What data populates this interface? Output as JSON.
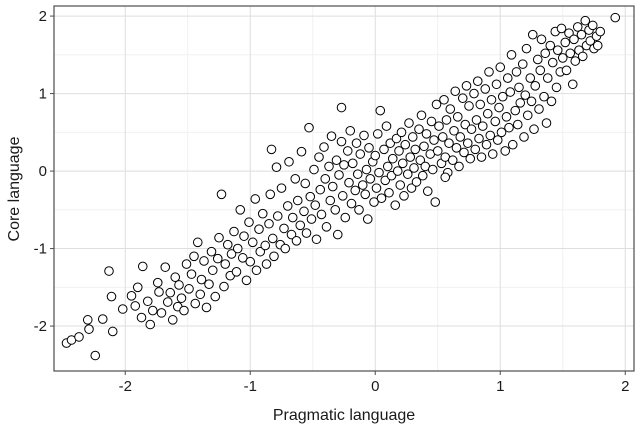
{
  "chart_data": {
    "type": "scatter",
    "title": "",
    "xlabel": "Pragmatic language",
    "ylabel": "Core language",
    "xlim": [
      -2.57,
      2.07
    ],
    "ylim": [
      -2.58,
      2.13
    ],
    "x_ticks": [
      -2,
      -1,
      0,
      1,
      2
    ],
    "y_ticks": [
      -2,
      -1,
      0,
      1,
      2
    ],
    "x_tick_labels": [
      "-2",
      "-1",
      "0",
      "1",
      "2"
    ],
    "y_tick_labels": [
      "-2",
      "-1",
      "0",
      "1",
      "2"
    ],
    "grid": true,
    "legend": "none",
    "colors": {
      "background": "#ffffff",
      "grid_major": "#dedede",
      "grid_minor": "#efefef",
      "frame": "#4d4d4d",
      "marker_fill": "#ffffff",
      "marker_stroke": "#000000",
      "text": "#1a1a1a"
    },
    "series": [
      {
        "points": [
          [
            -2.47,
            -2.22
          ],
          [
            -2.43,
            -2.18
          ],
          [
            -2.37,
            -2.14
          ],
          [
            -2.29,
            -2.04
          ],
          [
            -2.24,
            -2.38
          ],
          [
            -2.3,
            -1.92
          ],
          [
            -2.18,
            -1.91
          ],
          [
            -2.13,
            -1.29
          ],
          [
            -2.11,
            -1.62
          ],
          [
            -2.1,
            -2.07
          ],
          [
            -2.02,
            -1.78
          ],
          [
            -1.95,
            -1.61
          ],
          [
            -1.92,
            -1.74
          ],
          [
            -1.9,
            -1.5
          ],
          [
            -1.87,
            -1.89
          ],
          [
            -1.86,
            -1.23
          ],
          [
            -1.82,
            -1.68
          ],
          [
            -1.8,
            -1.98
          ],
          [
            -1.78,
            -1.8
          ],
          [
            -1.74,
            -1.44
          ],
          [
            -1.73,
            -1.56
          ],
          [
            -1.71,
            -1.83
          ],
          [
            -1.68,
            -1.24
          ],
          [
            -1.66,
            -1.69
          ],
          [
            -1.64,
            -1.57
          ],
          [
            -1.62,
            -1.92
          ],
          [
            -1.6,
            -1.37
          ],
          [
            -1.58,
            -1.75
          ],
          [
            -1.57,
            -1.47
          ],
          [
            -1.55,
            -1.64
          ],
          [
            -1.53,
            -1.8
          ],
          [
            -1.51,
            -1.2
          ],
          [
            -1.49,
            -1.52
          ],
          [
            -1.47,
            -1.33
          ],
          [
            -1.45,
            -1.1
          ],
          [
            -1.44,
            -1.71
          ],
          [
            -1.42,
            -0.92
          ],
          [
            -1.4,
            -1.59
          ],
          [
            -1.39,
            -1.4
          ],
          [
            -1.37,
            -1.16
          ],
          [
            -1.35,
            -1.76
          ],
          [
            -1.33,
            -1.46
          ],
          [
            -1.31,
            -1.04
          ],
          [
            -1.3,
            -1.28
          ],
          [
            -1.28,
            -1.62
          ],
          [
            -1.26,
            -1.13
          ],
          [
            -1.25,
            -0.86
          ],
          [
            -1.23,
            -0.3
          ],
          [
            -1.21,
            -1.49
          ],
          [
            -1.2,
            -1.2
          ],
          [
            -1.18,
            -0.95
          ],
          [
            -1.16,
            -1.35
          ],
          [
            -1.15,
            -1.07
          ],
          [
            -1.13,
            -0.78
          ],
          [
            -1.11,
            -1.3
          ],
          [
            -1.1,
            -1.0
          ],
          [
            -1.08,
            -0.5
          ],
          [
            -1.06,
            -1.12
          ],
          [
            -1.05,
            -0.84
          ],
          [
            -1.03,
            -1.41
          ],
          [
            -1.01,
            -0.66
          ],
          [
            -1.0,
            -1.17
          ],
          [
            -0.98,
            -0.92
          ],
          [
            -0.96,
            -0.36
          ],
          [
            -0.95,
            -1.28
          ],
          [
            -0.93,
            -0.75
          ],
          [
            -0.92,
            -1.04
          ],
          [
            -0.9,
            -0.55
          ],
          [
            -0.88,
            -0.96
          ],
          [
            -0.87,
            -1.2
          ],
          [
            -0.85,
            -0.68
          ],
          [
            -0.84,
            -0.3
          ],
          [
            -0.82,
            -0.87
          ],
          [
            -0.81,
            -1.1
          ],
          [
            -0.79,
            0.05
          ],
          [
            -0.78,
            -0.58
          ],
          [
            -0.76,
            -0.95
          ],
          [
            -0.75,
            -0.22
          ],
          [
            -0.73,
            -0.74
          ],
          [
            -0.72,
            -1.0
          ],
          [
            -0.7,
            -0.45
          ],
          [
            -0.69,
            0.12
          ],
          [
            -0.67,
            -0.82
          ],
          [
            -0.66,
            -0.6
          ],
          [
            -0.64,
            -0.1
          ],
          [
            -0.63,
            -0.9
          ],
          [
            -0.62,
            -0.38
          ],
          [
            -0.6,
            -0.7
          ],
          [
            -0.59,
            0.25
          ],
          [
            -0.57,
            -0.52
          ],
          [
            -0.56,
            -0.16
          ],
          [
            -0.55,
            -0.8
          ],
          [
            -0.53,
            0.56
          ],
          [
            -0.52,
            -0.33
          ],
          [
            -0.51,
            -0.62
          ],
          [
            -0.49,
            0.02
          ],
          [
            -0.48,
            -0.44
          ],
          [
            -0.47,
            -0.88
          ],
          [
            -0.45,
            0.18
          ],
          [
            -0.44,
            -0.24
          ],
          [
            -0.43,
            -0.56
          ],
          [
            -0.41,
            0.31
          ],
          [
            -0.4,
            -0.1
          ],
          [
            -0.39,
            -0.72
          ],
          [
            -0.37,
            0.06
          ],
          [
            -0.36,
            -0.38
          ],
          [
            -0.35,
            0.45
          ],
          [
            -0.34,
            -0.2
          ],
          [
            -0.32,
            -0.5
          ],
          [
            -0.31,
            0.14
          ],
          [
            -0.3,
            -0.82
          ],
          [
            -0.29,
            -0.05
          ],
          [
            -0.27,
            0.38
          ],
          [
            -0.26,
            -0.32
          ],
          [
            -0.25,
            0.08
          ],
          [
            -0.24,
            -0.6
          ],
          [
            -0.22,
            0.26
          ],
          [
            -0.21,
            -0.15
          ],
          [
            -0.2,
            0.52
          ],
          [
            -0.19,
            -0.42
          ],
          [
            -0.18,
            0.1
          ],
          [
            -0.16,
            -0.25
          ],
          [
            -0.15,
            0.36
          ],
          [
            -0.14,
            -0.04
          ],
          [
            -0.13,
            -0.5
          ],
          [
            -0.12,
            0.22
          ],
          [
            -0.1,
            -0.18
          ],
          [
            -0.09,
            0.46
          ],
          [
            -0.08,
            -0.3
          ],
          [
            -0.07,
            0.02
          ],
          [
            -0.06,
            -0.62
          ],
          [
            -0.05,
            0.3
          ],
          [
            -0.04,
            -0.1
          ],
          [
            -0.02,
            0.12
          ],
          [
            -0.01,
            -0.4
          ],
          [
            0.0,
            0.2
          ],
          [
            0.01,
            -0.22
          ],
          [
            0.02,
            0.48
          ],
          [
            0.03,
            -0.02
          ],
          [
            0.04,
            0.78
          ],
          [
            0.05,
            -0.35
          ],
          [
            0.07,
            0.28
          ],
          [
            0.08,
            -0.12
          ],
          [
            0.09,
            0.58
          ],
          [
            0.1,
            0.06
          ],
          [
            0.11,
            -0.28
          ],
          [
            0.12,
            0.36
          ],
          [
            0.13,
            -0.06
          ],
          [
            0.14,
            0.16
          ],
          [
            0.16,
            -0.44
          ],
          [
            0.17,
            0.42
          ],
          [
            0.18,
            0.0
          ],
          [
            0.19,
            0.26
          ],
          [
            0.2,
            -0.18
          ],
          [
            0.21,
            0.5
          ],
          [
            0.22,
            0.1
          ],
          [
            0.23,
            -0.32
          ],
          [
            0.24,
            0.34
          ],
          [
            0.26,
            -0.04
          ],
          [
            0.27,
            0.62
          ],
          [
            0.28,
            0.18
          ],
          [
            0.29,
            -0.22
          ],
          [
            0.3,
            0.44
          ],
          [
            0.31,
            0.04
          ],
          [
            0.32,
            0.28
          ],
          [
            0.33,
            -0.14
          ],
          [
            0.35,
            0.54
          ],
          [
            0.36,
            0.14
          ],
          [
            0.37,
            0.72
          ],
          [
            0.38,
            -0.06
          ],
          [
            0.39,
            0.32
          ],
          [
            0.4,
            0.06
          ],
          [
            0.41,
            0.48
          ],
          [
            0.42,
            -0.26
          ],
          [
            0.44,
            0.22
          ],
          [
            0.45,
            0.64
          ],
          [
            0.46,
            0.02
          ],
          [
            0.47,
            0.4
          ],
          [
            0.48,
            -0.4
          ],
          [
            0.49,
            0.86
          ],
          [
            0.5,
            0.26
          ],
          [
            0.51,
            0.58
          ],
          [
            0.53,
            0.1
          ],
          [
            0.54,
            0.44
          ],
          [
            0.55,
            0.92
          ],
          [
            0.56,
            0.18
          ],
          [
            0.57,
            0.66
          ],
          [
            0.58,
            -0.02
          ],
          [
            0.59,
            0.36
          ],
          [
            0.6,
            0.8
          ],
          [
            0.62,
            0.14
          ],
          [
            0.63,
            0.52
          ],
          [
            0.64,
            1.03
          ],
          [
            0.65,
            0.3
          ],
          [
            0.66,
            0.7
          ],
          [
            0.67,
            0.06
          ],
          [
            0.68,
            0.44
          ],
          [
            0.7,
            0.94
          ],
          [
            0.71,
            0.24
          ],
          [
            0.72,
            0.6
          ],
          [
            0.73,
            1.1
          ],
          [
            0.74,
            0.36
          ],
          [
            0.75,
            0.84
          ],
          [
            0.76,
            0.16
          ],
          [
            0.77,
            0.54
          ],
          [
            0.79,
            1.0
          ],
          [
            0.8,
            0.28
          ],
          [
            0.81,
            0.66
          ],
          [
            0.82,
            1.16
          ],
          [
            0.83,
            0.42
          ],
          [
            0.84,
            0.86
          ],
          [
            0.85,
            0.18
          ],
          [
            0.86,
            0.58
          ],
          [
            0.88,
            1.06
          ],
          [
            0.89,
            0.34
          ],
          [
            0.9,
            0.74
          ],
          [
            0.91,
            1.28
          ],
          [
            0.92,
            0.46
          ],
          [
            0.93,
            0.92
          ],
          [
            0.94,
            0.22
          ],
          [
            0.96,
            0.64
          ],
          [
            0.97,
            1.12
          ],
          [
            0.98,
            0.4
          ],
          [
            0.99,
            0.82
          ],
          [
            1.0,
            1.34
          ],
          [
            1.01,
            0.5
          ],
          [
            1.02,
            0.96
          ],
          [
            1.04,
            0.26
          ],
          [
            1.05,
            0.7
          ],
          [
            1.06,
            1.2
          ],
          [
            1.07,
            0.56
          ],
          [
            1.08,
            1.02
          ],
          [
            1.09,
            1.5
          ],
          [
            1.1,
            0.34
          ],
          [
            1.12,
            0.78
          ],
          [
            1.13,
            1.28
          ],
          [
            1.14,
            0.6
          ],
          [
            1.15,
            1.08
          ],
          [
            1.16,
            0.88
          ],
          [
            1.18,
            1.38
          ],
          [
            1.19,
            0.44
          ],
          [
            1.2,
            0.98
          ],
          [
            1.21,
            1.58
          ],
          [
            1.22,
            0.72
          ],
          [
            1.24,
            1.2
          ],
          [
            1.25,
            0.9
          ],
          [
            1.26,
            1.76
          ],
          [
            1.27,
            0.54
          ],
          [
            1.28,
            1.1
          ],
          [
            1.3,
            1.44
          ],
          [
            1.31,
            0.8
          ],
          [
            1.32,
            1.3
          ],
          [
            1.33,
            1.7
          ],
          [
            1.35,
            0.96
          ],
          [
            1.36,
            1.52
          ],
          [
            1.37,
            0.62
          ],
          [
            1.38,
            1.2
          ],
          [
            1.4,
            1.62
          ],
          [
            1.41,
            0.9
          ],
          [
            1.42,
            1.4
          ],
          [
            1.44,
            1.8
          ],
          [
            1.45,
            1.08
          ],
          [
            1.46,
            1.56
          ],
          [
            1.48,
            1.28
          ],
          [
            1.49,
            1.84
          ],
          [
            1.5,
            1.46
          ],
          [
            1.52,
            1.66
          ],
          [
            1.53,
            1.3
          ],
          [
            1.55,
            1.78
          ],
          [
            1.56,
            1.52
          ],
          [
            1.58,
            1.12
          ],
          [
            1.59,
            1.7
          ],
          [
            1.6,
            1.42
          ],
          [
            1.62,
            1.86
          ],
          [
            1.63,
            1.56
          ],
          [
            1.65,
            1.76
          ],
          [
            1.66,
            1.48
          ],
          [
            1.68,
            1.94
          ],
          [
            1.69,
            1.62
          ],
          [
            1.71,
            1.82
          ],
          [
            1.72,
            1.68
          ],
          [
            1.74,
            1.88
          ],
          [
            1.75,
            1.58
          ],
          [
            1.77,
            1.74
          ],
          [
            1.78,
            1.62
          ],
          [
            1.8,
            1.8
          ],
          [
            1.92,
            1.98
          ],
          [
            -0.83,
            0.28
          ],
          [
            -0.27,
            0.82
          ],
          [
            0.56,
            -0.08
          ]
        ]
      }
    ]
  }
}
